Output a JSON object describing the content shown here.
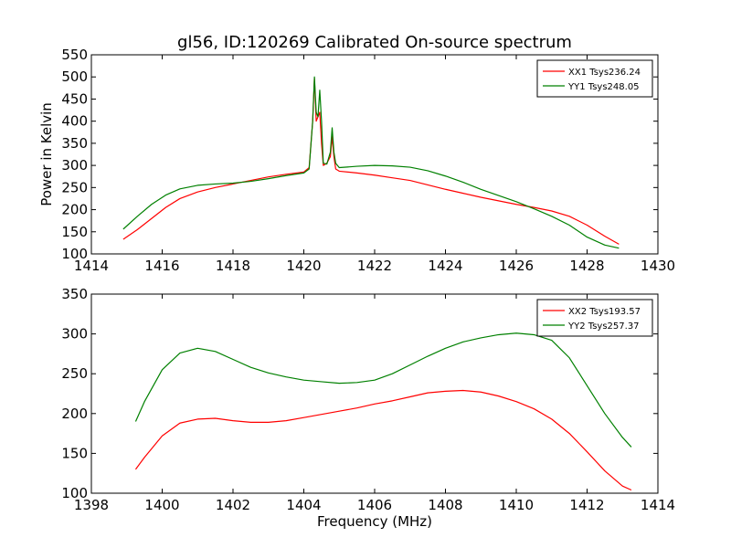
{
  "chart_data": [
    {
      "type": "line",
      "title": "gl56, ID:120269 Calibrated On-source spectrum",
      "xlabel": "",
      "ylabel": "Power in Kelvin",
      "xlim": [
        1414,
        1430
      ],
      "ylim": [
        100,
        550
      ],
      "xticks": [
        "1414",
        "1416",
        "1418",
        "1420",
        "1422",
        "1424",
        "1426",
        "1428",
        "1430"
      ],
      "yticks": [
        "100",
        "150",
        "200",
        "250",
        "300",
        "350",
        "400",
        "450",
        "500",
        "550"
      ],
      "legend_position": "top-right",
      "series": [
        {
          "name": "XX1 Tsys236.24",
          "color": "#ff0000",
          "x": [
            1414.9,
            1415.3,
            1415.7,
            1416.1,
            1416.5,
            1417.0,
            1417.5,
            1418.0,
            1418.5,
            1419.0,
            1419.5,
            1420.0,
            1420.15,
            1420.25,
            1420.3,
            1420.35,
            1420.45,
            1420.5,
            1420.55,
            1420.65,
            1420.75,
            1420.8,
            1420.85,
            1420.9,
            1421.0,
            1421.5,
            1422.0,
            1422.5,
            1423.0,
            1423.5,
            1424.0,
            1424.5,
            1425.0,
            1425.5,
            1426.0,
            1426.5,
            1427.0,
            1427.5,
            1428.0,
            1428.5,
            1428.9
          ],
          "values": [
            133,
            155,
            180,
            205,
            225,
            240,
            250,
            258,
            266,
            274,
            280,
            285,
            295,
            400,
            497,
            400,
            420,
            350,
            300,
            305,
            320,
            365,
            320,
            292,
            287,
            283,
            278,
            272,
            266,
            256,
            246,
            237,
            228,
            220,
            212,
            205,
            197,
            185,
            165,
            140,
            122
          ]
        },
        {
          "name": "YY1 Tsys248.05",
          "color": "#008000",
          "x": [
            1414.9,
            1415.3,
            1415.7,
            1416.1,
            1416.5,
            1417.0,
            1417.5,
            1418.0,
            1418.5,
            1419.0,
            1419.5,
            1420.0,
            1420.15,
            1420.25,
            1420.3,
            1420.35,
            1420.4,
            1420.45,
            1420.5,
            1420.55,
            1420.65,
            1420.75,
            1420.8,
            1420.85,
            1420.9,
            1421.0,
            1421.5,
            1422.0,
            1422.5,
            1423.0,
            1423.5,
            1424.0,
            1424.5,
            1425.0,
            1425.5,
            1426.0,
            1426.5,
            1427.0,
            1427.5,
            1428.0,
            1428.5,
            1428.9
          ],
          "values": [
            156,
            185,
            212,
            233,
            247,
            255,
            258,
            260,
            264,
            270,
            277,
            283,
            292,
            400,
            500,
            420,
            410,
            470,
            400,
            305,
            303,
            330,
            385,
            330,
            305,
            295,
            298,
            300,
            299,
            296,
            288,
            276,
            262,
            246,
            232,
            218,
            202,
            185,
            165,
            138,
            120,
            113
          ]
        }
      ]
    },
    {
      "type": "line",
      "title": "",
      "xlabel": "Frequency (MHz)",
      "ylabel": "",
      "xlim": [
        1398,
        1414
      ],
      "ylim": [
        100,
        350
      ],
      "xticks": [
        "1398",
        "1400",
        "1402",
        "1404",
        "1406",
        "1408",
        "1410",
        "1412",
        "1414"
      ],
      "yticks": [
        "100",
        "150",
        "200",
        "250",
        "300",
        "350"
      ],
      "legend_position": "top-right",
      "series": [
        {
          "name": "XX2 Tsys193.57",
          "color": "#ff0000",
          "x": [
            1399.25,
            1399.5,
            1400.0,
            1400.5,
            1401.0,
            1401.5,
            1402.0,
            1402.5,
            1403.0,
            1403.5,
            1404.0,
            1404.5,
            1405.0,
            1405.5,
            1406.0,
            1406.5,
            1407.0,
            1407.5,
            1408.0,
            1408.5,
            1409.0,
            1409.5,
            1410.0,
            1410.5,
            1411.0,
            1411.5,
            1412.0,
            1412.5,
            1413.0,
            1413.25
          ],
          "values": [
            130,
            145,
            172,
            188,
            193,
            194,
            191,
            189,
            189,
            191,
            195,
            199,
            203,
            207,
            212,
            216,
            221,
            226,
            228,
            229,
            227,
            222,
            215,
            206,
            193,
            175,
            152,
            128,
            109,
            104
          ]
        },
        {
          "name": "YY2 Tsys257.37",
          "color": "#008000",
          "x": [
            1399.25,
            1399.5,
            1400.0,
            1400.5,
            1401.0,
            1401.5,
            1402.0,
            1402.5,
            1403.0,
            1403.5,
            1404.0,
            1404.5,
            1405.0,
            1405.5,
            1406.0,
            1406.5,
            1407.0,
            1407.5,
            1408.0,
            1408.5,
            1409.0,
            1409.5,
            1410.0,
            1410.5,
            1411.0,
            1411.5,
            1412.0,
            1412.5,
            1413.0,
            1413.25
          ],
          "values": [
            190,
            215,
            255,
            276,
            282,
            278,
            268,
            258,
            251,
            246,
            242,
            240,
            238,
            239,
            242,
            250,
            261,
            272,
            282,
            290,
            295,
            299,
            301,
            299,
            292,
            270,
            235,
            200,
            170,
            158
          ]
        }
      ]
    }
  ]
}
